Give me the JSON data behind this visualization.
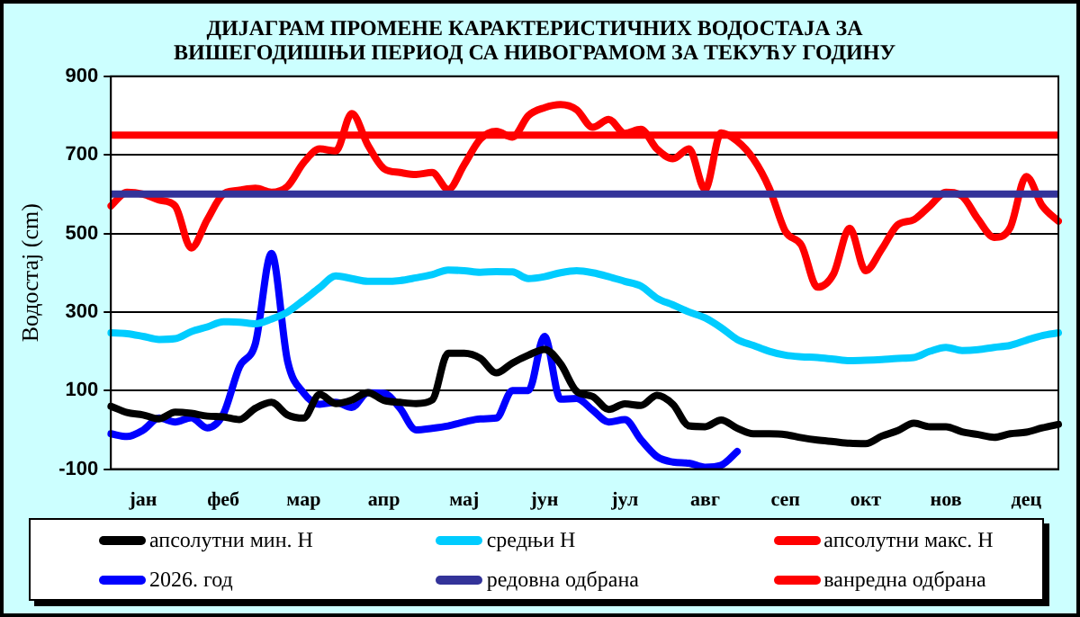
{
  "chart_data": {
    "type": "line",
    "title": "ДИЈАГРАМ ПРОМЕНЕ КАРАКТЕРИСТИЧНИХ ВОДОСТАЈА ЗА ВИШЕГОДИШЊИ ПЕРИОД СА НИВОГРАМОМ ЗА ТЕКУЋУ ГОДИНУ",
    "ylabel": "Водостај (cm)",
    "categories": [
      null,
      null,
      "јан",
      null,
      null,
      null,
      null,
      "феб",
      null,
      null,
      null,
      null,
      "мар",
      null,
      null,
      null,
      null,
      "апр",
      null,
      null,
      null,
      null,
      "мај",
      null,
      null,
      null,
      null,
      "јун",
      null,
      null,
      null,
      null,
      "јул",
      null,
      null,
      null,
      null,
      "авг",
      null,
      null,
      null,
      null,
      "сеп",
      null,
      null,
      null,
      null,
      "окт",
      null,
      null,
      null,
      null,
      "нов",
      null,
      null,
      null,
      null,
      "дец",
      null,
      null
    ],
    "ylim": [
      -100,
      900
    ],
    "yticks": [
      -100,
      100,
      300,
      500,
      700,
      900
    ],
    "grid": "y",
    "legend": "bottom",
    "marker": "none",
    "line_style": "solid",
    "series": [
      {
        "name": "апсолутни мин. H",
        "color": "#000000",
        "values": [
          60,
          44,
          38,
          28,
          45,
          42,
          35,
          33,
          26,
          55,
          70,
          38,
          30,
          90,
          67,
          76,
          95,
          75,
          70,
          67,
          76,
          195,
          195,
          182,
          145,
          170,
          190,
          205,
          168,
          98,
          85,
          52,
          66,
          62,
          88,
          65,
          10,
          8,
          25,
          4,
          -10,
          -10,
          -12,
          -20,
          -26,
          -30,
          -34,
          -35,
          -16,
          -2,
          17,
          8,
          8,
          -5,
          -12,
          -19,
          -10,
          -6,
          5,
          14
        ]
      },
      {
        "name": "средњи H",
        "color": "#00ccff",
        "values": [
          247,
          245,
          238,
          230,
          232,
          250,
          262,
          275,
          274,
          270,
          282,
          300,
          330,
          362,
          392,
          385,
          378,
          378,
          380,
          387,
          395,
          407,
          405,
          401,
          403,
          402,
          385,
          390,
          400,
          405,
          400,
          390,
          378,
          366,
          335,
          318,
          300,
          285,
          260,
          230,
          215,
          200,
          190,
          186,
          184,
          180,
          176,
          177,
          179,
          182,
          184,
          200,
          210,
          202,
          204,
          210,
          215,
          228,
          240,
          247
        ]
      },
      {
        "name": "апсолутни макс. H",
        "color": "#ff0000",
        "values": [
          570,
          605,
          600,
          585,
          570,
          463,
          535,
          600,
          610,
          615,
          605,
          620,
          680,
          715,
          710,
          805,
          725,
          665,
          655,
          650,
          655,
          612,
          675,
          740,
          760,
          745,
          800,
          820,
          828,
          815,
          770,
          790,
          755,
          765,
          715,
          690,
          715,
          612,
          756,
          735,
          690,
          615,
          505,
          470,
          363,
          397,
          513,
          405,
          460,
          522,
          535,
          570,
          605,
          595,
          536,
          490,
          515,
          645,
          570,
          531
        ]
      },
      {
        "name": "2026. год",
        "color": "#0000ff",
        "values": [
          -10,
          -17,
          -1,
          30,
          20,
          31,
          5,
          40,
          160,
          220,
          449,
          175,
          94,
          65,
          70,
          57,
          94,
          93,
          55,
          0,
          4,
          10,
          20,
          28,
          30,
          100,
          100,
          238,
          78,
          80,
          50,
          20,
          26,
          -25,
          -68,
          -82,
          -85,
          -95,
          -90,
          -55,
          null,
          null,
          null,
          null,
          null,
          null,
          null,
          null,
          null,
          null,
          null,
          null,
          null,
          null,
          null,
          null,
          null,
          null,
          null,
          null
        ]
      }
    ],
    "ref_lines": [
      {
        "axis": "y",
        "value": 600,
        "label": "редовна одбрана",
        "color": "#333399"
      },
      {
        "axis": "y",
        "value": 750,
        "label": "ванредна одбрана",
        "color": "#ff0000"
      }
    ]
  }
}
